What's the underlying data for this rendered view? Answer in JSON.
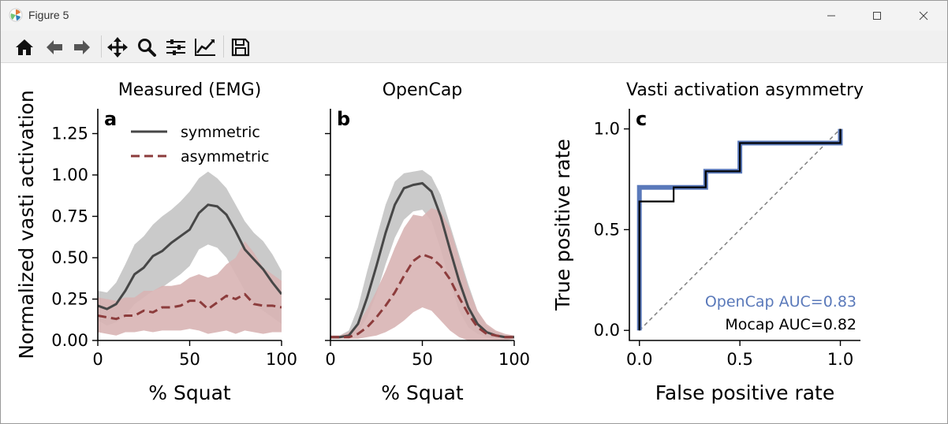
{
  "window": {
    "title": "Figure 5"
  },
  "toolbar": {
    "buttons": [
      "home-icon",
      "back-icon",
      "forward-icon",
      "pan-icon",
      "zoom-icon",
      "configure-subplots-icon",
      "edit-axis-icon",
      "save-icon"
    ]
  },
  "colors": {
    "symmetric": "#474747",
    "symmetric_band": "#c4c4c4",
    "asymmetric": "#8c3c3c",
    "asymmetric_band": "#d8b4b4",
    "opencap": "#5a79ba",
    "mocap": "#000000",
    "diagonal": "#808080"
  },
  "chart_data": [
    {
      "type": "area",
      "panel_letter": "a",
      "title": "Measured (EMG)",
      "xlabel": "% Squat",
      "ylabel": "Normalized vasti activation",
      "xlim": [
        0,
        100
      ],
      "ylim": [
        0,
        1.4
      ],
      "xticks": [
        0,
        50,
        100
      ],
      "xtick_labels": [
        "0",
        "50",
        "100"
      ],
      "yticks": [
        0,
        0.25,
        0.5,
        0.75,
        1.0,
        1.25
      ],
      "ytick_labels": [
        "0.00",
        "0.25",
        "0.50",
        "0.75",
        "1.00",
        "1.25"
      ],
      "legend": {
        "placement": "top-right",
        "entries": [
          "symmetric",
          "asymmetric"
        ]
      },
      "x": [
        0,
        5,
        10,
        15,
        20,
        25,
        30,
        35,
        40,
        45,
        50,
        55,
        60,
        65,
        70,
        75,
        80,
        85,
        90,
        95,
        100
      ],
      "series": [
        {
          "name": "symmetric",
          "style": "solid",
          "values": [
            0.21,
            0.19,
            0.22,
            0.3,
            0.4,
            0.44,
            0.51,
            0.54,
            0.59,
            0.63,
            0.67,
            0.77,
            0.82,
            0.81,
            0.76,
            0.66,
            0.55,
            0.49,
            0.43,
            0.35,
            0.28
          ],
          "lower": [
            0.12,
            0.09,
            0.11,
            0.15,
            0.22,
            0.26,
            0.3,
            0.32,
            0.36,
            0.4,
            0.45,
            0.55,
            0.58,
            0.56,
            0.5,
            0.4,
            0.3,
            0.22,
            0.18,
            0.14,
            0.1
          ],
          "upper": [
            0.3,
            0.29,
            0.35,
            0.46,
            0.58,
            0.63,
            0.7,
            0.75,
            0.79,
            0.84,
            0.9,
            0.98,
            1.02,
            0.98,
            0.92,
            0.82,
            0.72,
            0.65,
            0.6,
            0.52,
            0.42
          ]
        },
        {
          "name": "asymmetric",
          "style": "dashed",
          "values": [
            0.15,
            0.14,
            0.13,
            0.15,
            0.15,
            0.18,
            0.17,
            0.2,
            0.2,
            0.21,
            0.24,
            0.24,
            0.19,
            0.23,
            0.27,
            0.25,
            0.28,
            0.22,
            0.21,
            0.21,
            0.2
          ],
          "lower": [
            0.05,
            0.04,
            0.03,
            0.05,
            0.05,
            0.06,
            0.05,
            0.06,
            0.06,
            0.06,
            0.07,
            0.06,
            0.04,
            0.05,
            0.06,
            0.04,
            0.06,
            0.05,
            0.04,
            0.05,
            0.05
          ],
          "upper": [
            0.26,
            0.25,
            0.24,
            0.26,
            0.26,
            0.3,
            0.3,
            0.33,
            0.33,
            0.34,
            0.38,
            0.4,
            0.38,
            0.4,
            0.46,
            0.5,
            0.6,
            0.53,
            0.44,
            0.4,
            0.36
          ]
        }
      ]
    },
    {
      "type": "area",
      "panel_letter": "b",
      "title": "OpenCap",
      "xlabel": "% Squat",
      "ylabel": "",
      "xlim": [
        0,
        100
      ],
      "ylim": [
        0,
        1.4
      ],
      "xticks": [
        0,
        50,
        100
      ],
      "xtick_labels": [
        "0",
        "50",
        "100"
      ],
      "yticks": [
        0,
        0.25,
        0.5,
        0.75,
        1.0,
        1.25
      ],
      "ytick_labels": [
        "",
        "",
        "",
        "",
        "",
        ""
      ],
      "x": [
        0,
        5,
        10,
        15,
        20,
        25,
        30,
        35,
        40,
        45,
        50,
        55,
        60,
        65,
        70,
        75,
        80,
        85,
        90,
        95,
        100
      ],
      "series": [
        {
          "name": "symmetric",
          "style": "solid",
          "values": [
            0.02,
            0.02,
            0.03,
            0.1,
            0.26,
            0.45,
            0.65,
            0.82,
            0.92,
            0.94,
            0.95,
            0.9,
            0.75,
            0.55,
            0.36,
            0.2,
            0.1,
            0.05,
            0.03,
            0.02,
            0.02
          ],
          "lower": [
            0.01,
            0.01,
            0.02,
            0.05,
            0.14,
            0.28,
            0.46,
            0.62,
            0.73,
            0.78,
            0.79,
            0.72,
            0.55,
            0.35,
            0.18,
            0.08,
            0.04,
            0.02,
            0.01,
            0.01,
            0.01
          ],
          "upper": [
            0.03,
            0.03,
            0.06,
            0.2,
            0.42,
            0.62,
            0.82,
            0.96,
            1.01,
            1.02,
            1.03,
            0.99,
            0.88,
            0.7,
            0.52,
            0.34,
            0.18,
            0.09,
            0.05,
            0.03,
            0.03
          ]
        },
        {
          "name": "asymmetric",
          "style": "dashed",
          "values": [
            0.02,
            0.02,
            0.02,
            0.04,
            0.08,
            0.14,
            0.21,
            0.29,
            0.39,
            0.48,
            0.52,
            0.5,
            0.45,
            0.37,
            0.26,
            0.16,
            0.08,
            0.04,
            0.03,
            0.02,
            0.02
          ],
          "lower": [
            0.01,
            0.01,
            0.01,
            0.01,
            0.02,
            0.03,
            0.05,
            0.08,
            0.12,
            0.17,
            0.2,
            0.18,
            0.12,
            0.06,
            0.02,
            0.0,
            0.0,
            0.0,
            0.0,
            0.0,
            0.01
          ],
          "upper": [
            0.03,
            0.03,
            0.05,
            0.1,
            0.19,
            0.3,
            0.42,
            0.56,
            0.68,
            0.76,
            0.75,
            0.8,
            0.78,
            0.68,
            0.5,
            0.32,
            0.18,
            0.1,
            0.06,
            0.04,
            0.03
          ]
        }
      ]
    },
    {
      "type": "line",
      "panel_letter": "c",
      "title": "Vasti activation asymmetry",
      "xlabel": "False positive rate",
      "ylabel": "True positive rate",
      "xlim": [
        -0.05,
        1.1
      ],
      "ylim": [
        -0.05,
        1.1
      ],
      "xticks": [
        0,
        0.5,
        1.0
      ],
      "xtick_labels": [
        "0.0",
        "0.5",
        "1.0"
      ],
      "yticks": [
        0,
        0.5,
        1.0
      ],
      "ytick_labels": [
        "0.0",
        "0.5",
        "1.0"
      ],
      "series": [
        {
          "name": "OpenCap AUC=0.83",
          "x": [
            0,
            0,
            0.17,
            0.17,
            0.33,
            0.33,
            0.5,
            0.5,
            1.0,
            1.0
          ],
          "y": [
            0,
            0.71,
            0.71,
            0.71,
            0.71,
            0.79,
            0.79,
            0.93,
            0.93,
            1.0
          ]
        },
        {
          "name": "Mocap AUC=0.82",
          "x": [
            0,
            0,
            0.17,
            0.17,
            0.33,
            0.33,
            0.5,
            0.5,
            1.0,
            1.0
          ],
          "y": [
            0,
            0.64,
            0.64,
            0.71,
            0.71,
            0.79,
            0.79,
            0.93,
            0.93,
            1.0
          ]
        }
      ],
      "diagonal": {
        "x": [
          0,
          1
        ],
        "y": [
          0,
          1
        ],
        "style": "dashed"
      },
      "legend_labels": [
        "OpenCap AUC=0.83",
        "Mocap AUC=0.82"
      ]
    }
  ]
}
